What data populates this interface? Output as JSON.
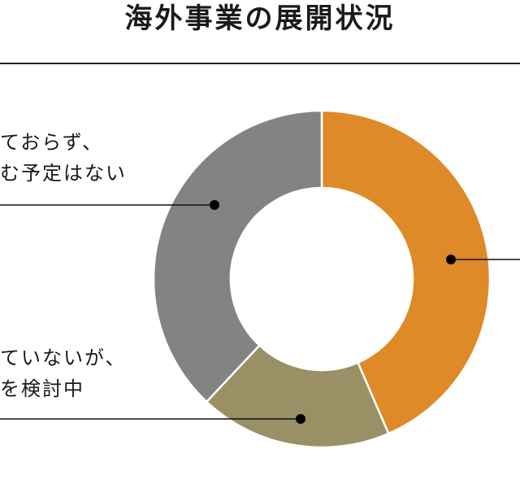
{
  "title": "海外事業の展開状況",
  "chart_data": {
    "type": "pie",
    "donut": true,
    "colors": [
      "#de8a28",
      "#999066",
      "#838383"
    ],
    "slices": [
      {
        "label": "",
        "value": 43.5
      },
      {
        "label": "…ていないが、…を検討中",
        "value": 18.5
      },
      {
        "label": "…ておらず、…む予定はない",
        "value": 38
      }
    ]
  },
  "callouts": {
    "no_plan": [
      "ておらず、",
      "む予定はない"
    ],
    "considering": [
      "ていないが、",
      "を検討中"
    ]
  }
}
